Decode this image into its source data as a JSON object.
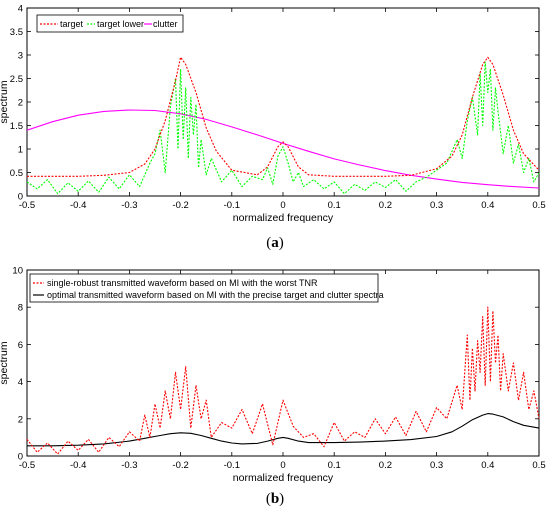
{
  "chart_data": [
    {
      "type": "line",
      "xlabel": "normalized frequency",
      "ylabel": "spectrum",
      "xlim": [
        -0.5,
        0.5
      ],
      "ylim": [
        0,
        4
      ],
      "xticks": [
        -0.5,
        -0.4,
        -0.3,
        -0.2,
        -0.1,
        0,
        0.1,
        0.2,
        0.3,
        0.4,
        0.5
      ],
      "xtick_labels": [
        "-0.5",
        "-0.4",
        "-0.3",
        "-0.2",
        "-0.1",
        "0",
        "0.1",
        "0.2",
        "0.3",
        "0.4",
        "0.5"
      ],
      "yticks": [
        0,
        0.5,
        1,
        1.5,
        2,
        2.5,
        3,
        3.5,
        4
      ],
      "ytick_labels": [
        "0",
        "0.5",
        "1",
        "1.5",
        "2",
        "2.5",
        "3",
        "3.5",
        "4"
      ],
      "grid": false,
      "legend_position": "top-left",
      "legend_orientation": "horizontal",
      "caption": "a",
      "series": [
        {
          "name": "target",
          "color": "#ff0000",
          "dash": "dotted",
          "x": [
            -0.5,
            -0.4,
            -0.35,
            -0.3,
            -0.27,
            -0.25,
            -0.23,
            -0.21,
            -0.2,
            -0.19,
            -0.17,
            -0.15,
            -0.13,
            -0.1,
            -0.05,
            -0.03,
            -0.01,
            0,
            0.01,
            0.03,
            0.05,
            0.1,
            0.2,
            0.25,
            0.3,
            0.33,
            0.35,
            0.37,
            0.39,
            0.4,
            0.41,
            0.43,
            0.45,
            0.47,
            0.5
          ],
          "y": [
            0.42,
            0.42,
            0.44,
            0.5,
            0.68,
            1.0,
            1.6,
            2.45,
            2.95,
            2.8,
            2.2,
            1.45,
            0.95,
            0.55,
            0.45,
            0.62,
            1.05,
            1.15,
            1.05,
            0.62,
            0.45,
            0.42,
            0.42,
            0.44,
            0.58,
            0.85,
            1.3,
            2.1,
            2.8,
            2.95,
            2.8,
            2.15,
            1.4,
            0.9,
            0.55
          ]
        },
        {
          "name": "target lower",
          "color": "#00ff00",
          "dash": "dotted",
          "x": [
            -0.5,
            -0.48,
            -0.46,
            -0.44,
            -0.42,
            -0.4,
            -0.38,
            -0.36,
            -0.34,
            -0.32,
            -0.3,
            -0.28,
            -0.26,
            -0.25,
            -0.24,
            -0.23,
            -0.22,
            -0.21,
            -0.205,
            -0.2,
            -0.195,
            -0.19,
            -0.185,
            -0.18,
            -0.175,
            -0.17,
            -0.165,
            -0.16,
            -0.15,
            -0.14,
            -0.12,
            -0.1,
            -0.08,
            -0.06,
            -0.04,
            -0.03,
            -0.02,
            -0.01,
            0,
            0.01,
            0.02,
            0.03,
            0.04,
            0.06,
            0.08,
            0.1,
            0.12,
            0.14,
            0.16,
            0.18,
            0.2,
            0.22,
            0.24,
            0.26,
            0.28,
            0.3,
            0.32,
            0.34,
            0.35,
            0.36,
            0.37,
            0.38,
            0.385,
            0.39,
            0.395,
            0.4,
            0.405,
            0.41,
            0.415,
            0.42,
            0.43,
            0.44,
            0.45,
            0.46,
            0.47,
            0.48,
            0.49,
            0.5
          ],
          "y": [
            0.3,
            0.15,
            0.35,
            0.05,
            0.28,
            0.1,
            0.32,
            0.08,
            0.4,
            0.15,
            0.45,
            0.2,
            0.7,
            0.9,
            1.4,
            0.5,
            1.9,
            2.5,
            1.0,
            2.7,
            1.2,
            2.3,
            0.8,
            2.1,
            1.3,
            1.95,
            0.6,
            1.2,
            0.45,
            0.8,
            0.3,
            0.55,
            0.2,
            0.42,
            0.35,
            0.6,
            0.25,
            0.85,
            1.05,
            0.7,
            0.3,
            0.5,
            0.2,
            0.35,
            0.15,
            0.3,
            0.05,
            0.25,
            0.12,
            0.3,
            0.18,
            0.35,
            0.1,
            0.3,
            0.4,
            0.55,
            0.7,
            1.2,
            0.8,
            1.6,
            2.1,
            1.3,
            2.6,
            1.5,
            2.85,
            2.2,
            2.7,
            1.4,
            2.3,
            1.8,
            0.9,
            1.5,
            0.7,
            1.1,
            0.5,
            0.8,
            0.3,
            0.5
          ]
        },
        {
          "name": "clutter",
          "color": "#ff00ff",
          "dash": "solid",
          "x": [
            -0.5,
            -0.45,
            -0.4,
            -0.35,
            -0.3,
            -0.25,
            -0.2,
            -0.15,
            -0.1,
            -0.05,
            0,
            0.05,
            0.1,
            0.15,
            0.2,
            0.25,
            0.3,
            0.35,
            0.4,
            0.45,
            0.5
          ],
          "y": [
            1.4,
            1.58,
            1.72,
            1.8,
            1.83,
            1.82,
            1.75,
            1.63,
            1.47,
            1.3,
            1.12,
            0.95,
            0.79,
            0.66,
            0.54,
            0.44,
            0.36,
            0.29,
            0.24,
            0.2,
            0.17
          ]
        }
      ]
    },
    {
      "type": "line",
      "xlabel": "normalized frequency",
      "ylabel": "spectrum",
      "xlim": [
        -0.5,
        0.5
      ],
      "ylim": [
        0,
        10
      ],
      "xticks": [
        -0.5,
        -0.4,
        -0.3,
        -0.2,
        -0.1,
        0,
        0.1,
        0.2,
        0.3,
        0.4,
        0.5
      ],
      "xtick_labels": [
        "-0.5",
        "-0.4",
        "-0.3",
        "-0.2",
        "-0.1",
        "0",
        "0.1",
        "0.2",
        "0.3",
        "0.4",
        "0.5"
      ],
      "yticks": [
        0,
        2,
        4,
        6,
        8,
        10
      ],
      "ytick_labels": [
        "0",
        "2",
        "4",
        "6",
        "8",
        "10"
      ],
      "grid": false,
      "legend_position": "top-left",
      "legend_orientation": "vertical",
      "caption": "b",
      "series": [
        {
          "name": "single-robust transmitted waveform based on MI with the worst TNR",
          "color": "#ff0000",
          "dash": "dotted",
          "x": [
            -0.5,
            -0.48,
            -0.46,
            -0.44,
            -0.42,
            -0.4,
            -0.38,
            -0.36,
            -0.34,
            -0.32,
            -0.3,
            -0.28,
            -0.27,
            -0.26,
            -0.25,
            -0.24,
            -0.23,
            -0.22,
            -0.21,
            -0.2,
            -0.19,
            -0.18,
            -0.17,
            -0.16,
            -0.15,
            -0.14,
            -0.12,
            -0.1,
            -0.08,
            -0.06,
            -0.04,
            -0.02,
            0,
            0.02,
            0.04,
            0.06,
            0.08,
            0.1,
            0.12,
            0.14,
            0.16,
            0.18,
            0.2,
            0.22,
            0.24,
            0.26,
            0.28,
            0.3,
            0.32,
            0.34,
            0.35,
            0.36,
            0.365,
            0.37,
            0.375,
            0.38,
            0.385,
            0.39,
            0.395,
            0.4,
            0.405,
            0.41,
            0.415,
            0.42,
            0.425,
            0.43,
            0.44,
            0.45,
            0.46,
            0.47,
            0.48,
            0.49,
            0.5
          ],
          "y": [
            0.9,
            0.2,
            0.7,
            0.1,
            0.8,
            0.3,
            0.9,
            0.2,
            1.0,
            0.5,
            1.3,
            0.8,
            2.2,
            1.0,
            2.8,
            1.5,
            3.5,
            2.0,
            4.5,
            2.5,
            4.8,
            1.5,
            3.8,
            2.0,
            3.0,
            1.0,
            1.8,
            1.5,
            2.5,
            1.2,
            2.8,
            0.6,
            3.0,
            1.6,
            1.0,
            1.2,
            0.5,
            1.8,
            0.8,
            1.3,
            1.0,
            2.0,
            1.2,
            2.1,
            1.1,
            2.4,
            1.3,
            2.6,
            2.0,
            3.8,
            2.5,
            6.5,
            3.0,
            5.8,
            3.5,
            6.2,
            4.5,
            7.5,
            3.8,
            8.0,
            4.0,
            7.8,
            5.0,
            6.5,
            3.5,
            5.5,
            3.5,
            5.0,
            3.0,
            4.5,
            2.5,
            3.5,
            2.0
          ]
        },
        {
          "name": "optimal transmitted waveform based on MI with the precise target and clutter spectra",
          "color": "#000000",
          "dash": "solid",
          "x": [
            -0.5,
            -0.45,
            -0.4,
            -0.35,
            -0.3,
            -0.27,
            -0.24,
            -0.22,
            -0.2,
            -0.18,
            -0.16,
            -0.14,
            -0.12,
            -0.1,
            -0.08,
            -0.05,
            -0.03,
            -0.01,
            0,
            0.01,
            0.03,
            0.05,
            0.1,
            0.15,
            0.2,
            0.25,
            0.3,
            0.33,
            0.35,
            0.37,
            0.39,
            0.4,
            0.41,
            0.43,
            0.45,
            0.47,
            0.5
          ],
          "y": [
            0.55,
            0.55,
            0.58,
            0.65,
            0.8,
            0.95,
            1.1,
            1.2,
            1.25,
            1.22,
            1.1,
            0.95,
            0.8,
            0.7,
            0.65,
            0.68,
            0.8,
            0.95,
            1.0,
            0.95,
            0.8,
            0.72,
            0.72,
            0.75,
            0.8,
            0.88,
            1.05,
            1.3,
            1.6,
            1.95,
            2.2,
            2.28,
            2.25,
            2.1,
            1.85,
            1.65,
            1.5
          ]
        }
      ]
    }
  ]
}
